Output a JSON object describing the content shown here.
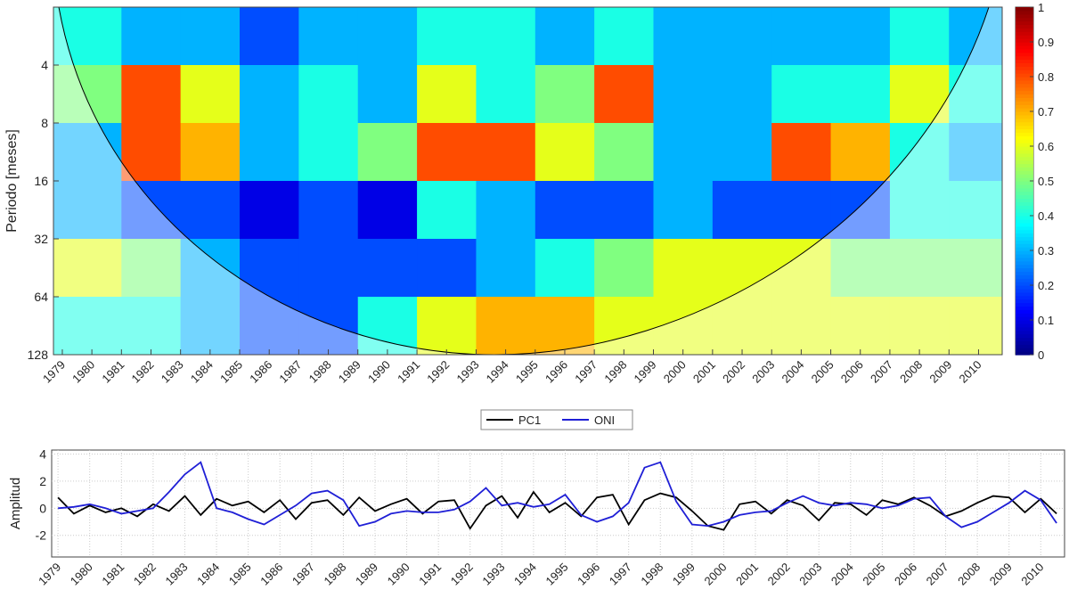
{
  "chart_data": [
    {
      "type": "heatmap",
      "ylabel": "Periodo [meses]",
      "x_bins": [
        1979,
        1981,
        1983,
        1985,
        1987,
        1989,
        1991,
        1993,
        1995,
        1997,
        1999,
        2001,
        2003,
        2005,
        2007,
        2009,
        2011
      ],
      "y_bins": [
        2,
        4,
        8,
        16,
        32,
        64,
        128
      ],
      "values": [
        [
          0.4,
          0.3,
          0.3,
          0.2,
          0.3,
          0.3,
          0.4,
          0.4,
          0.3,
          0.4,
          0.3,
          0.3,
          0.3,
          0.3,
          0.4,
          0.3
        ],
        [
          0.5,
          0.8,
          0.6,
          0.3,
          0.4,
          0.3,
          0.6,
          0.4,
          0.5,
          0.8,
          0.3,
          0.3,
          0.4,
          0.4,
          0.6,
          0.4
        ],
        [
          0.3,
          0.8,
          0.7,
          0.3,
          0.4,
          0.5,
          0.8,
          0.8,
          0.6,
          0.5,
          0.3,
          0.3,
          0.8,
          0.7,
          0.4,
          0.3
        ],
        [
          0.3,
          0.2,
          0.2,
          0.1,
          0.2,
          0.1,
          0.4,
          0.3,
          0.2,
          0.2,
          0.3,
          0.2,
          0.2,
          0.2,
          0.4,
          0.4
        ],
        [
          0.6,
          0.5,
          0.3,
          0.2,
          0.2,
          0.2,
          0.2,
          0.3,
          0.4,
          0.5,
          0.6,
          0.6,
          0.6,
          0.5,
          0.5,
          0.5
        ],
        [
          0.4,
          0.4,
          0.3,
          0.2,
          0.2,
          0.4,
          0.6,
          0.7,
          0.7,
          0.6,
          0.6,
          0.6,
          0.6,
          0.6,
          0.6,
          0.6
        ]
      ],
      "xlim": [
        1978.7,
        2010.8
      ],
      "ylim": [
        2,
        128
      ],
      "log_y": true,
      "xticks": [
        1979,
        1980,
        1981,
        1982,
        1983,
        1984,
        1985,
        1986,
        1987,
        1988,
        1989,
        1990,
        1991,
        1992,
        1993,
        1994,
        1995,
        1996,
        1997,
        1998,
        1999,
        2000,
        2001,
        2002,
        2003,
        2004,
        2005,
        2006,
        2007,
        2008,
        2009,
        2010
      ],
      "yticks": [
        4,
        8,
        16,
        32,
        64,
        128
      ],
      "clim": [
        0,
        1
      ],
      "colorbar_ticks": [
        0,
        0.1,
        0.2,
        0.3,
        0.4,
        0.5,
        0.6,
        0.7,
        0.8,
        0.9,
        1
      ],
      "colormap": "jet"
    },
    {
      "type": "line",
      "ylabel": "Amplitud",
      "legend": "top-outside",
      "grid": true,
      "x": [
        1979,
        1979.5,
        1980,
        1980.5,
        1981,
        1981.5,
        1982,
        1982.5,
        1983,
        1983.5,
        1984,
        1984.5,
        1985,
        1985.5,
        1986,
        1986.5,
        1987,
        1987.5,
        1988,
        1988.5,
        1989,
        1989.5,
        1990,
        1990.5,
        1991,
        1991.5,
        1992,
        1992.5,
        1993,
        1993.5,
        1994,
        1994.5,
        1995,
        1995.5,
        1996,
        1996.5,
        1997,
        1997.5,
        1998,
        1998.5,
        1999,
        1999.5,
        2000,
        2000.5,
        2001,
        2001.5,
        2002,
        2002.5,
        2003,
        2003.5,
        2004,
        2004.5,
        2005,
        2005.5,
        2006,
        2006.5,
        2007,
        2007.5,
        2008,
        2008.5,
        2009,
        2009.5,
        2010,
        2010.5
      ],
      "series": [
        {
          "name": "PC1",
          "color": "#000000",
          "values": [
            0.8,
            -0.4,
            0.2,
            -0.3,
            0,
            -0.6,
            0.3,
            -0.2,
            0.9,
            -0.5,
            0.7,
            0.2,
            0.5,
            -0.3,
            0.6,
            -0.8,
            0.4,
            0.6,
            -0.5,
            0.8,
            -0.2,
            0.3,
            0.7,
            -0.4,
            0.5,
            0.6,
            -1.5,
            0.2,
            0.9,
            -0.7,
            1.2,
            -0.3,
            0.4,
            -0.6,
            0.8,
            1.0,
            -1.2,
            0.6,
            1.1,
            0.8,
            -0.2,
            -1.3,
            -1.6,
            0.3,
            0.5,
            -0.4,
            0.6,
            0.2,
            -0.9,
            0.4,
            0.3,
            -0.5,
            0.6,
            0.3,
            0.8,
            0.2,
            -0.6,
            -0.2,
            0.4,
            0.9,
            0.8,
            -0.3,
            0.7,
            -0.4
          ]
        },
        {
          "name": "ONI",
          "color": "#1f1fd6",
          "values": [
            0,
            0.1,
            0.3,
            0,
            -0.4,
            -0.2,
            0,
            1.2,
            2.5,
            3.4,
            0,
            -0.3,
            -0.8,
            -1.2,
            -0.5,
            0.2,
            1.1,
            1.3,
            0.6,
            -1.3,
            -1.0,
            -0.4,
            -0.2,
            -0.3,
            -0.3,
            -0.1,
            0.5,
            1.5,
            0.2,
            0.4,
            0.1,
            0.3,
            1.0,
            -0.5,
            -1.0,
            -0.6,
            0.4,
            3.0,
            3.4,
            0.5,
            -1.2,
            -1.3,
            -1.0,
            -0.5,
            -0.3,
            -0.2,
            0.4,
            0.9,
            0.4,
            0.2,
            0.4,
            0.3,
            0,
            0.2,
            0.7,
            0.8,
            -0.6,
            -1.4,
            -1.0,
            -0.3,
            0.4,
            1.3,
            0.6,
            -1.1
          ]
        }
      ],
      "xlim": [
        1978.8,
        2010.75
      ],
      "ylim": [
        -3.6,
        4.3
      ],
      "xticks": [
        1979,
        1980,
        1981,
        1982,
        1983,
        1984,
        1985,
        1986,
        1987,
        1988,
        1989,
        1990,
        1991,
        1992,
        1993,
        1994,
        1995,
        1996,
        1997,
        1998,
        1999,
        2000,
        2001,
        2002,
        2003,
        2004,
        2005,
        2006,
        2007,
        2008,
        2009,
        2010
      ],
      "yticks": [
        4,
        2,
        0,
        -2
      ]
    }
  ]
}
